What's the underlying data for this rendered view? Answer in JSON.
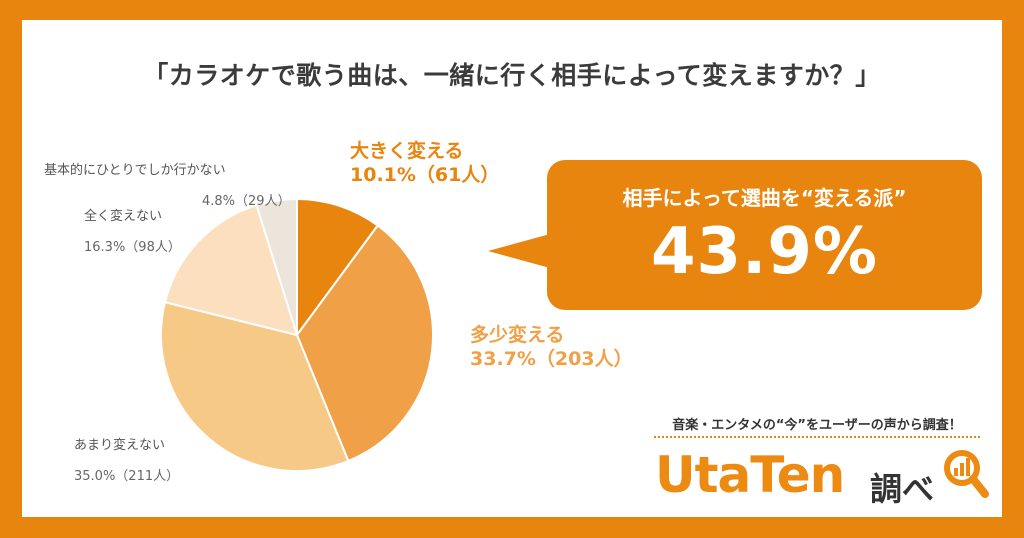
{
  "title": "「カラオケで歌う曲は、一緒に行く相手によって変えますか？」",
  "chart_data": {
    "type": "pie",
    "title": "「カラオケで歌う曲は、一緒に行く相手によって変えますか？」",
    "slices": [
      {
        "label": "大きく変える",
        "percent": 10.1,
        "count_label": "10.1%（61人）",
        "count": 61,
        "color": "#e8850f"
      },
      {
        "label": "多少変える",
        "percent": 33.7,
        "count_label": "33.7%（203人）",
        "count": 203,
        "color": "#f0a147"
      },
      {
        "label": "あまり変えない",
        "percent": 35.0,
        "count_label": "35.0%（211人）",
        "count": 211,
        "color": "#f6c987"
      },
      {
        "label": "全く変えない",
        "percent": 16.3,
        "count_label": "16.3%（98人）",
        "count": 98,
        "color": "#fbdfbf"
      },
      {
        "label": "基本的にひとりでしか行かない",
        "percent": 4.8,
        "count_label": "4.8%（29人）",
        "count": 29,
        "color": "#ece5dc"
      }
    ]
  },
  "callout": {
    "heading": "相手によって選曲を“変える派”",
    "value": "43.9%"
  },
  "footer": {
    "tagline": "音楽・エンタメの“今”をユーザーの声から調査！",
    "logo_main": "UtaTen",
    "logo_sub": "調べ"
  }
}
